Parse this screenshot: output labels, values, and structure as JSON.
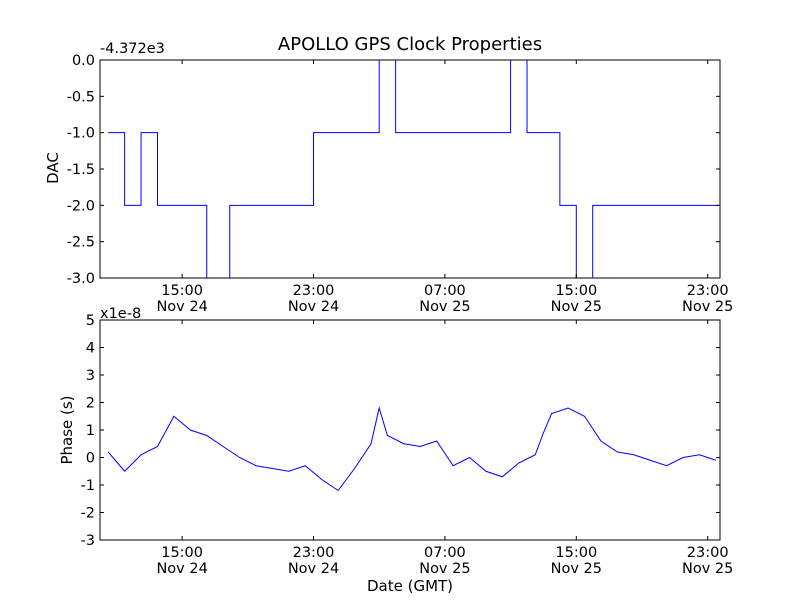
{
  "chart_data": [
    {
      "type": "line",
      "title": "APOLLO GPS Clock Properties",
      "ylabel": "DAC",
      "xlabel": "",
      "offset_text": "-4.372e3",
      "ylim": [
        -3.0,
        0.0
      ],
      "y_ticks": [
        "0.0",
        "-0.5",
        "-1.0",
        "-1.5",
        "-2.0",
        "-2.5",
        "-3.0"
      ],
      "x_ticks": [
        {
          "time": "15:00",
          "date": "Nov 24"
        },
        {
          "time": "23:00",
          "date": "Nov 24"
        },
        {
          "time": "07:00",
          "date": "Nov 25"
        },
        {
          "time": "15:00",
          "date": "Nov 25"
        },
        {
          "time": "23:00",
          "date": "Nov 25"
        }
      ],
      "grid": false,
      "legend": "none",
      "color": "#0000ff",
      "series": [
        {
          "x_hours": [
            10.5,
            11.5,
            12.5,
            13.5,
            14.5,
            15.5,
            16.5,
            17.2,
            17.9,
            19.0,
            20.5,
            22.0,
            23.0,
            24.0,
            25.0,
            26.0,
            27.0,
            28.0,
            29.0,
            30.0,
            31.0,
            32.0,
            33.0,
            34.0,
            35.0,
            36.0,
            37.0,
            38.0,
            39.0,
            40.0,
            41.0,
            42.0,
            43.0,
            44.0,
            45.0,
            46.0,
            47.0,
            47.5
          ],
          "y": [
            -1.0,
            -2.0,
            -1.0,
            -2.0,
            -2.0,
            -2.0,
            -3.0,
            -3.0,
            -2.0,
            -2.0,
            -2.0,
            -2.0,
            -1.0,
            -1.0,
            -1.0,
            -1.0,
            -0.0,
            -1.0,
            -1.0,
            -1.0,
            -1.0,
            -1.0,
            -1.0,
            -1.0,
            -0.0,
            -1.0,
            -1.0,
            -2.0,
            -3.0,
            -2.0,
            -2.0,
            -2.0,
            -2.0,
            -2.0,
            -2.0,
            -2.0,
            -2.0,
            -2.0
          ]
        }
      ]
    },
    {
      "type": "line",
      "title": "",
      "ylabel": "Phase (s)",
      "xlabel": "Date (GMT)",
      "offset_text": "x1e-8",
      "ylim": [
        -3,
        5
      ],
      "y_ticks": [
        "5",
        "4",
        "3",
        "2",
        "1",
        "0",
        "-1",
        "-2",
        "-3"
      ],
      "x_ticks": [
        {
          "time": "15:00",
          "date": "Nov 24"
        },
        {
          "time": "23:00",
          "date": "Nov 24"
        },
        {
          "time": "07:00",
          "date": "Nov 25"
        },
        {
          "time": "15:00",
          "date": "Nov 25"
        },
        {
          "time": "23:00",
          "date": "Nov 25"
        }
      ],
      "grid": false,
      "legend": "none",
      "color": "#0000ff",
      "series": [
        {
          "x_hours": [
            10.5,
            11.5,
            12.5,
            13.5,
            14.5,
            15.5,
            16.5,
            17.5,
            18.5,
            19.5,
            20.5,
            21.5,
            22.5,
            23.5,
            24.5,
            25.5,
            26.5,
            27.0,
            27.5,
            28.5,
            29.5,
            30.5,
            31.5,
            32.5,
            33.5,
            34.5,
            35.5,
            36.5,
            37.0,
            37.5,
            38.5,
            39.5,
            40.5,
            41.5,
            42.5,
            43.5,
            44.5,
            45.5,
            46.5,
            47.5
          ],
          "y": [
            0.2,
            -0.5,
            0.1,
            0.4,
            1.5,
            1.0,
            0.8,
            0.4,
            0.0,
            -0.3,
            -0.4,
            -0.5,
            -0.3,
            -0.8,
            -1.2,
            -0.4,
            0.5,
            1.8,
            0.8,
            0.5,
            0.4,
            0.6,
            -0.3,
            0.0,
            -0.5,
            -0.7,
            -0.2,
            0.1,
            0.9,
            1.6,
            1.8,
            1.5,
            0.6,
            0.2,
            0.1,
            -0.1,
            -0.3,
            0.0,
            0.1,
            -0.1
          ]
        }
      ]
    }
  ]
}
